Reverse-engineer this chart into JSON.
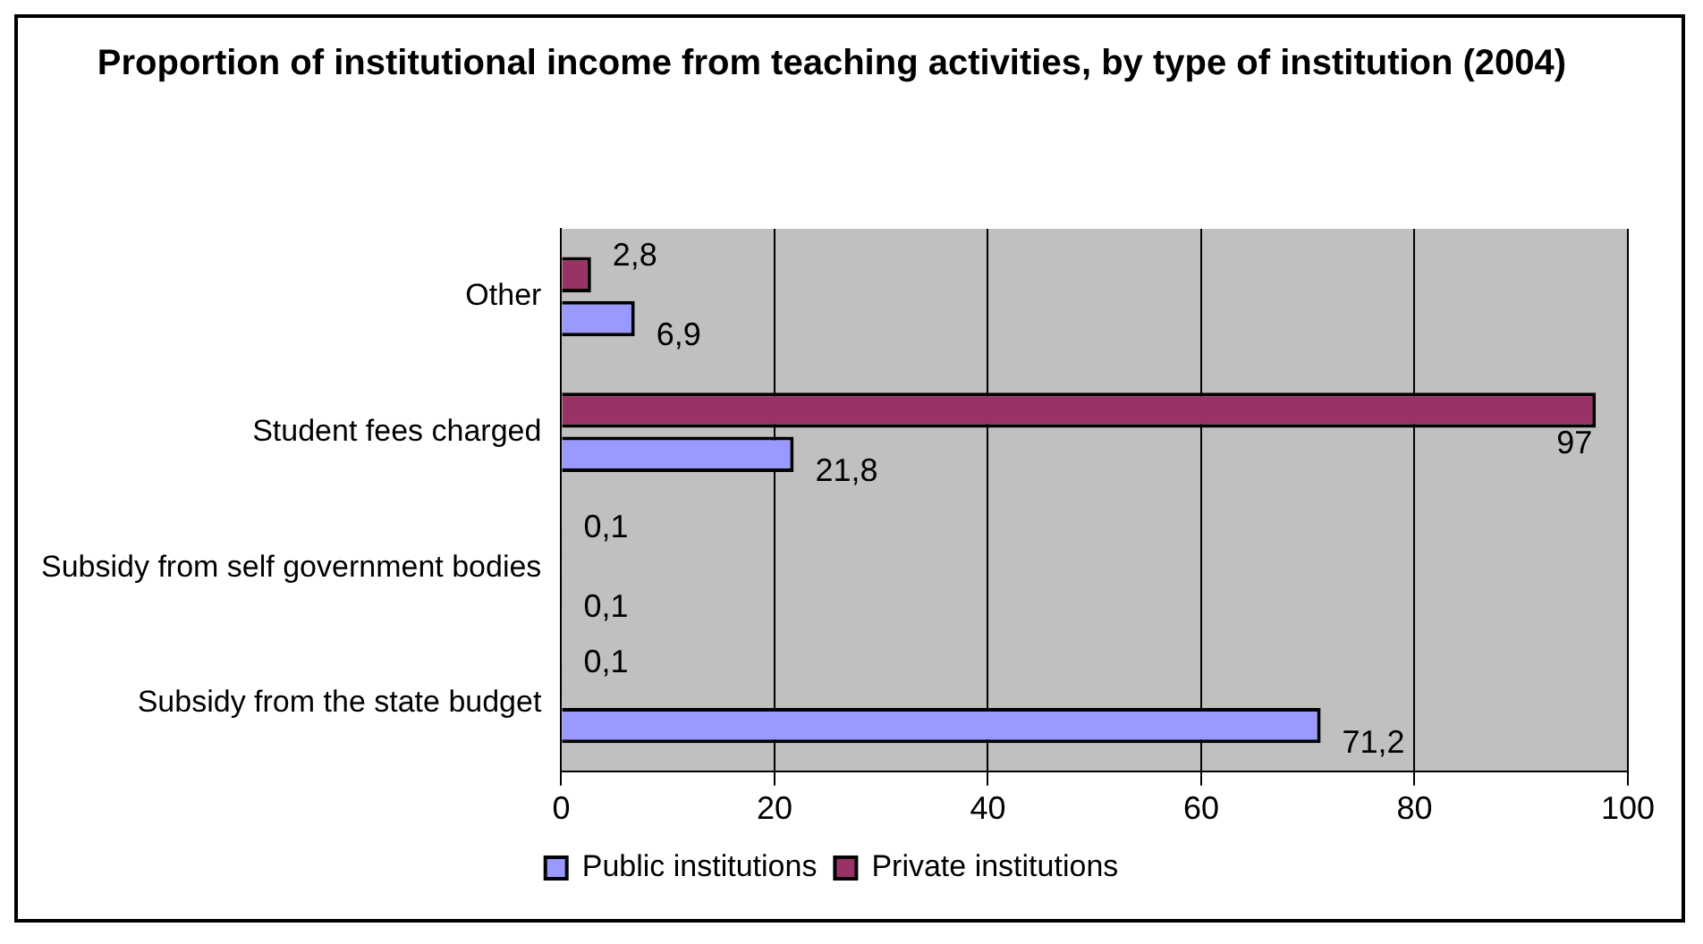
{
  "chart_data": {
    "type": "bar",
    "orientation": "horizontal",
    "title": "Proportion of institutional income from teaching activities, by type of institution (2004)",
    "categories": [
      "Other",
      "Student fees charged",
      "Subsidy from self government bodies",
      "Subsidy from the state budget"
    ],
    "series": [
      {
        "name": "Public institutions",
        "color": "#9999ff",
        "values": [
          6.9,
          21.8,
          0.1,
          71.2
        ],
        "value_labels": [
          "6,9",
          "21,8",
          "0,1",
          "71,2"
        ]
      },
      {
        "name": "Private institutions",
        "color": "#993366",
        "values": [
          2.8,
          97,
          0.1,
          0.1
        ],
        "value_labels": [
          "2,8",
          "97",
          "0,1",
          "0,1"
        ]
      }
    ],
    "xlim": [
      0,
      100
    ],
    "xticks": [
      0,
      20,
      40,
      60,
      80,
      100
    ],
    "grid": "x",
    "legend": "bottom"
  }
}
